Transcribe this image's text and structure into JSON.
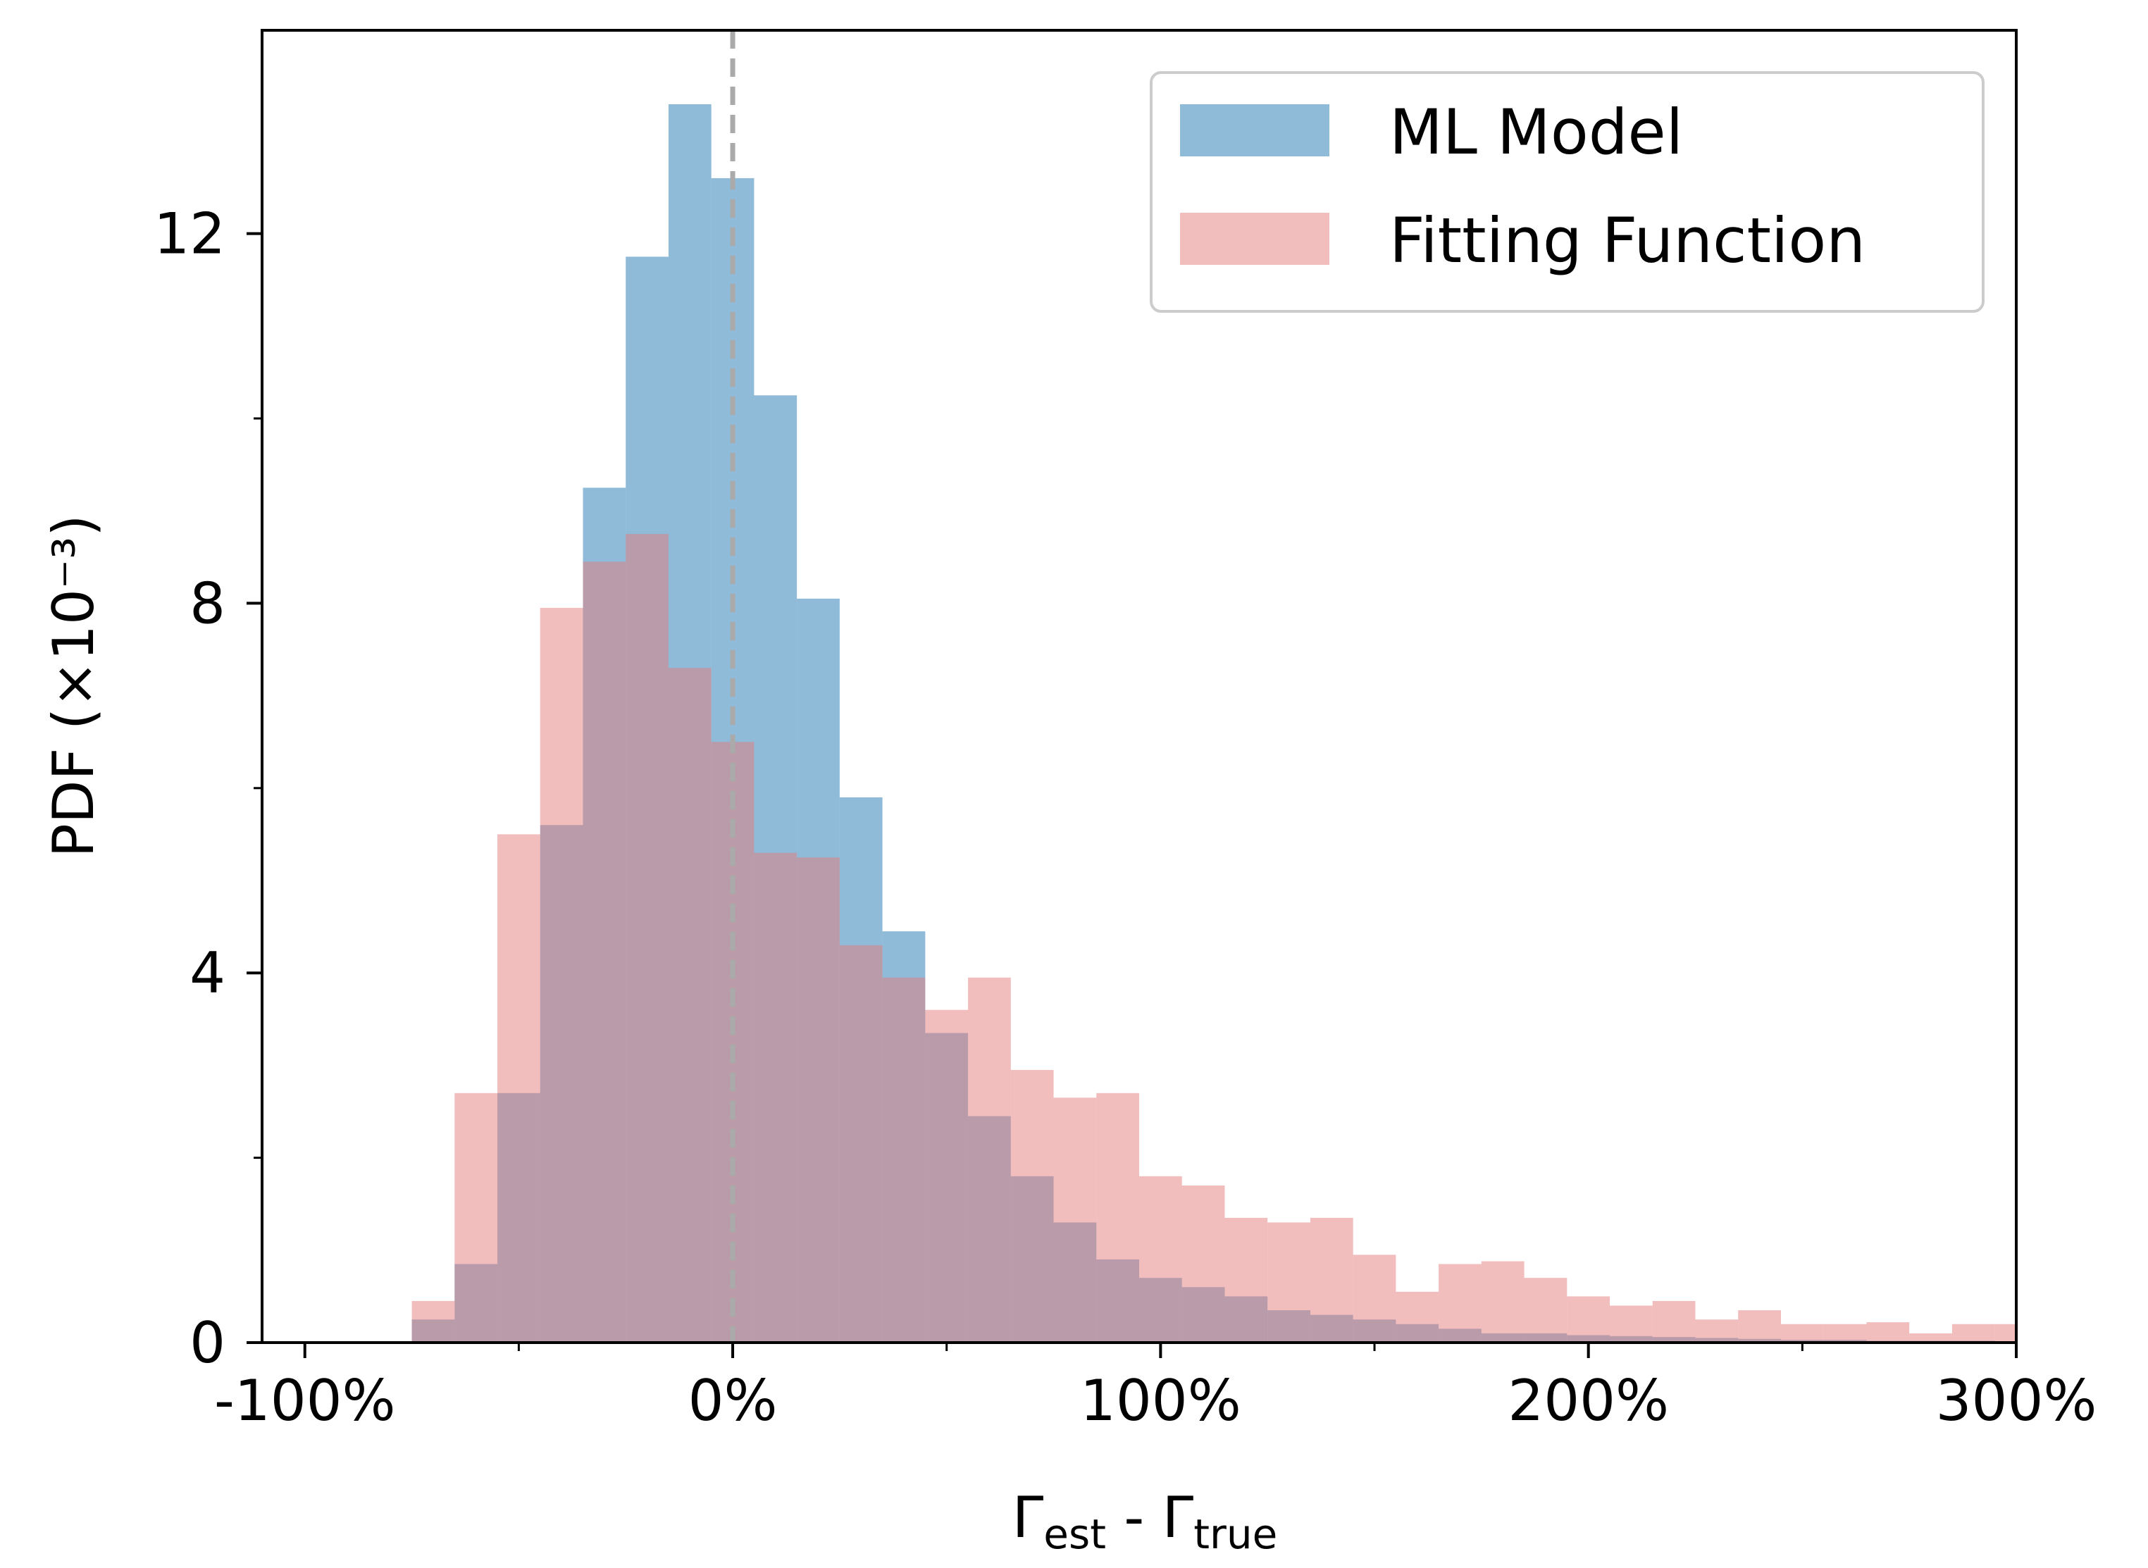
{
  "chart_data": {
    "type": "histogram",
    "xlabel": {
      "base": "Γ",
      "sub1": "est",
      "mid": " - Γ",
      "sub2": "true"
    },
    "ylabel": "PDF (×10⁻³)",
    "xlim": [
      -110,
      300
    ],
    "ylim": [
      0,
      14.2
    ],
    "x_ticks": [
      {
        "value": -100,
        "label": "-100%"
      },
      {
        "value": 0,
        "label": "0%"
      },
      {
        "value": 100,
        "label": "100%"
      },
      {
        "value": 200,
        "label": "200%"
      },
      {
        "value": 300,
        "label": "300%"
      }
    ],
    "x_minor_ticks": [
      -50,
      50,
      150,
      250
    ],
    "y_ticks": [
      {
        "value": 0,
        "label": "0"
      },
      {
        "value": 4,
        "label": "4"
      },
      {
        "value": 8,
        "label": "8"
      },
      {
        "value": 12,
        "label": "12"
      }
    ],
    "y_minor_ticks": [
      2,
      6,
      10
    ],
    "reference_line": {
      "x": 0,
      "style": "dashed",
      "color": "#aaaaaa"
    },
    "legend": {
      "position": "upper right"
    },
    "series": [
      {
        "name": "ML Model",
        "color": "#1f77b4",
        "bins": [
          {
            "x0": -75,
            "x1": -65,
            "y": 0.25
          },
          {
            "x0": -65,
            "x1": -55,
            "y": 0.85
          },
          {
            "x0": -55,
            "x1": -45,
            "y": 2.7
          },
          {
            "x0": -45,
            "x1": -35,
            "y": 5.6
          },
          {
            "x0": -35,
            "x1": -25,
            "y": 9.25
          },
          {
            "x0": -25,
            "x1": -15,
            "y": 11.75
          },
          {
            "x0": -15,
            "x1": -5,
            "y": 13.4
          },
          {
            "x0": -5,
            "x1": 5,
            "y": 12.6
          },
          {
            "x0": 5,
            "x1": 15,
            "y": 10.25
          },
          {
            "x0": 15,
            "x1": 25,
            "y": 8.05
          },
          {
            "x0": 25,
            "x1": 35,
            "y": 5.9
          },
          {
            "x0": 35,
            "x1": 45,
            "y": 4.45
          },
          {
            "x0": 45,
            "x1": 55,
            "y": 3.35
          },
          {
            "x0": 55,
            "x1": 65,
            "y": 2.45
          },
          {
            "x0": 65,
            "x1": 75,
            "y": 1.8
          },
          {
            "x0": 75,
            "x1": 85,
            "y": 1.3
          },
          {
            "x0": 85,
            "x1": 95,
            "y": 0.9
          },
          {
            "x0": 95,
            "x1": 105,
            "y": 0.7
          },
          {
            "x0": 105,
            "x1": 115,
            "y": 0.6
          },
          {
            "x0": 115,
            "x1": 125,
            "y": 0.5
          },
          {
            "x0": 125,
            "x1": 135,
            "y": 0.35
          },
          {
            "x0": 135,
            "x1": 145,
            "y": 0.3
          },
          {
            "x0": 145,
            "x1": 155,
            "y": 0.25
          },
          {
            "x0": 155,
            "x1": 165,
            "y": 0.2
          },
          {
            "x0": 165,
            "x1": 175,
            "y": 0.15
          },
          {
            "x0": 175,
            "x1": 185,
            "y": 0.1
          },
          {
            "x0": 185,
            "x1": 195,
            "y": 0.1
          },
          {
            "x0": 195,
            "x1": 205,
            "y": 0.08
          },
          {
            "x0": 205,
            "x1": 215,
            "y": 0.07
          },
          {
            "x0": 215,
            "x1": 225,
            "y": 0.06
          },
          {
            "x0": 225,
            "x1": 235,
            "y": 0.05
          },
          {
            "x0": 235,
            "x1": 245,
            "y": 0.04
          },
          {
            "x0": 245,
            "x1": 255,
            "y": 0.03
          },
          {
            "x0": 255,
            "x1": 265,
            "y": 0.03
          },
          {
            "x0": 265,
            "x1": 275,
            "y": 0.02
          },
          {
            "x0": 275,
            "x1": 285,
            "y": 0.02
          },
          {
            "x0": 285,
            "x1": 295,
            "y": 0.02
          },
          {
            "x0": 295,
            "x1": 300,
            "y": 0.01
          }
        ]
      },
      {
        "name": "Fitting Function",
        "color": "#e67c7c",
        "bins": [
          {
            "x0": -75,
            "x1": -65,
            "y": 0.45
          },
          {
            "x0": -65,
            "x1": -55,
            "y": 2.7
          },
          {
            "x0": -55,
            "x1": -45,
            "y": 5.5
          },
          {
            "x0": -45,
            "x1": -35,
            "y": 7.95
          },
          {
            "x0": -35,
            "x1": -25,
            "y": 8.45
          },
          {
            "x0": -25,
            "x1": -15,
            "y": 8.75
          },
          {
            "x0": -15,
            "x1": -5,
            "y": 7.3
          },
          {
            "x0": -5,
            "x1": 5,
            "y": 6.5
          },
          {
            "x0": 5,
            "x1": 15,
            "y": 5.3
          },
          {
            "x0": 15,
            "x1": 25,
            "y": 5.25
          },
          {
            "x0": 25,
            "x1": 35,
            "y": 4.3
          },
          {
            "x0": 35,
            "x1": 45,
            "y": 3.95
          },
          {
            "x0": 45,
            "x1": 55,
            "y": 3.6
          },
          {
            "x0": 55,
            "x1": 65,
            "y": 3.95
          },
          {
            "x0": 65,
            "x1": 75,
            "y": 2.95
          },
          {
            "x0": 75,
            "x1": 85,
            "y": 2.65
          },
          {
            "x0": 85,
            "x1": 95,
            "y": 2.7
          },
          {
            "x0": 95,
            "x1": 105,
            "y": 1.8
          },
          {
            "x0": 105,
            "x1": 115,
            "y": 1.7
          },
          {
            "x0": 115,
            "x1": 125,
            "y": 1.35
          },
          {
            "x0": 125,
            "x1": 135,
            "y": 1.3
          },
          {
            "x0": 135,
            "x1": 145,
            "y": 1.35
          },
          {
            "x0": 145,
            "x1": 155,
            "y": 0.95
          },
          {
            "x0": 155,
            "x1": 165,
            "y": 0.55
          },
          {
            "x0": 165,
            "x1": 175,
            "y": 0.85
          },
          {
            "x0": 175,
            "x1": 185,
            "y": 0.88
          },
          {
            "x0": 185,
            "x1": 195,
            "y": 0.7
          },
          {
            "x0": 195,
            "x1": 205,
            "y": 0.5
          },
          {
            "x0": 205,
            "x1": 215,
            "y": 0.4
          },
          {
            "x0": 215,
            "x1": 225,
            "y": 0.45
          },
          {
            "x0": 225,
            "x1": 235,
            "y": 0.25
          },
          {
            "x0": 235,
            "x1": 245,
            "y": 0.35
          },
          {
            "x0": 245,
            "x1": 255,
            "y": 0.2
          },
          {
            "x0": 255,
            "x1": 265,
            "y": 0.2
          },
          {
            "x0": 265,
            "x1": 275,
            "y": 0.22
          },
          {
            "x0": 275,
            "x1": 285,
            "y": 0.1
          },
          {
            "x0": 285,
            "x1": 295,
            "y": 0.2
          },
          {
            "x0": 295,
            "x1": 300,
            "y": 0.2
          }
        ]
      }
    ]
  }
}
